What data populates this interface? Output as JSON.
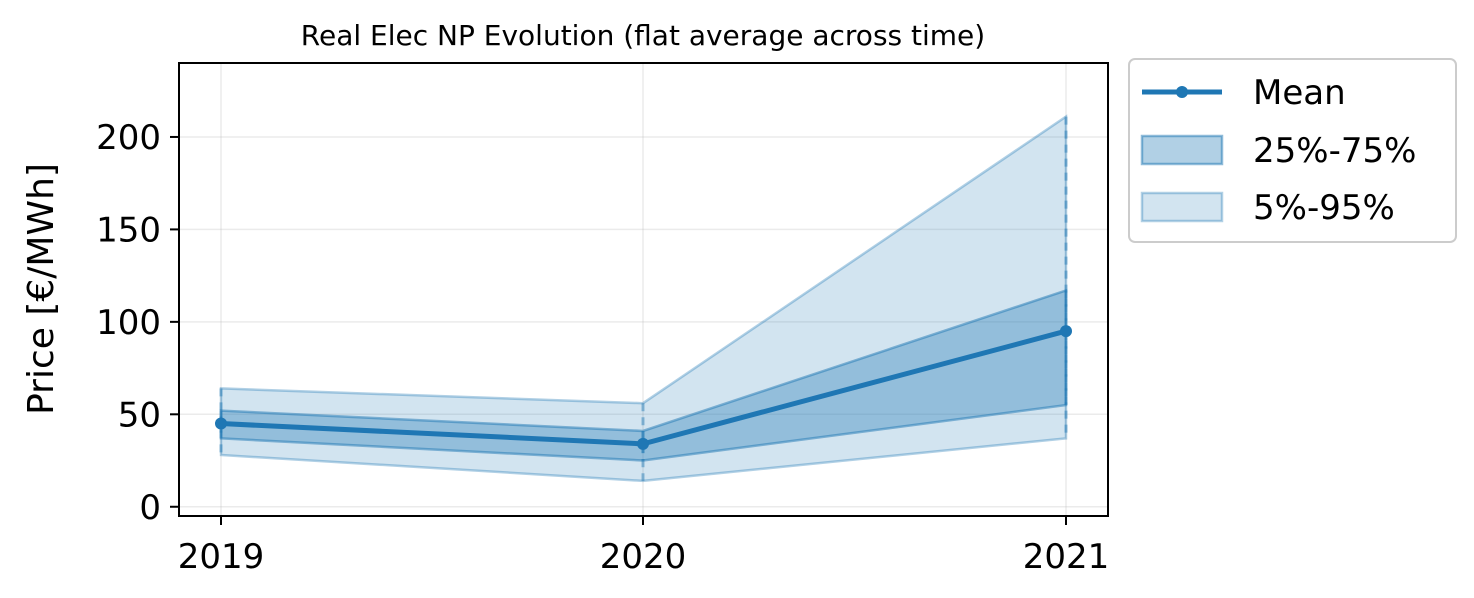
{
  "chart_data": {
    "type": "line",
    "title": "Real Elec NP Evolution (flat average across time)",
    "xlabel": "",
    "ylabel": "Price [€/MWh]",
    "categories": [
      "2019",
      "2020",
      "2021"
    ],
    "ylim": [
      -5,
      240
    ],
    "yticks": [
      0,
      50,
      100,
      150,
      200
    ],
    "grid": true,
    "legend_position": "outside-top-right",
    "series": [
      {
        "name": "Mean",
        "kind": "line",
        "values": [
          45,
          34,
          95
        ],
        "color": "#1f77b4"
      },
      {
        "name": "25%-75%",
        "kind": "band",
        "lower": [
          37,
          25,
          55
        ],
        "upper": [
          52,
          41,
          117
        ],
        "color": "#1f77b4",
        "opacity": 0.35
      },
      {
        "name": "5%-95%",
        "kind": "band",
        "lower": [
          28,
          14,
          37
        ],
        "upper": [
          64,
          56,
          211
        ],
        "color": "#1f77b4",
        "opacity": 0.2
      }
    ]
  }
}
